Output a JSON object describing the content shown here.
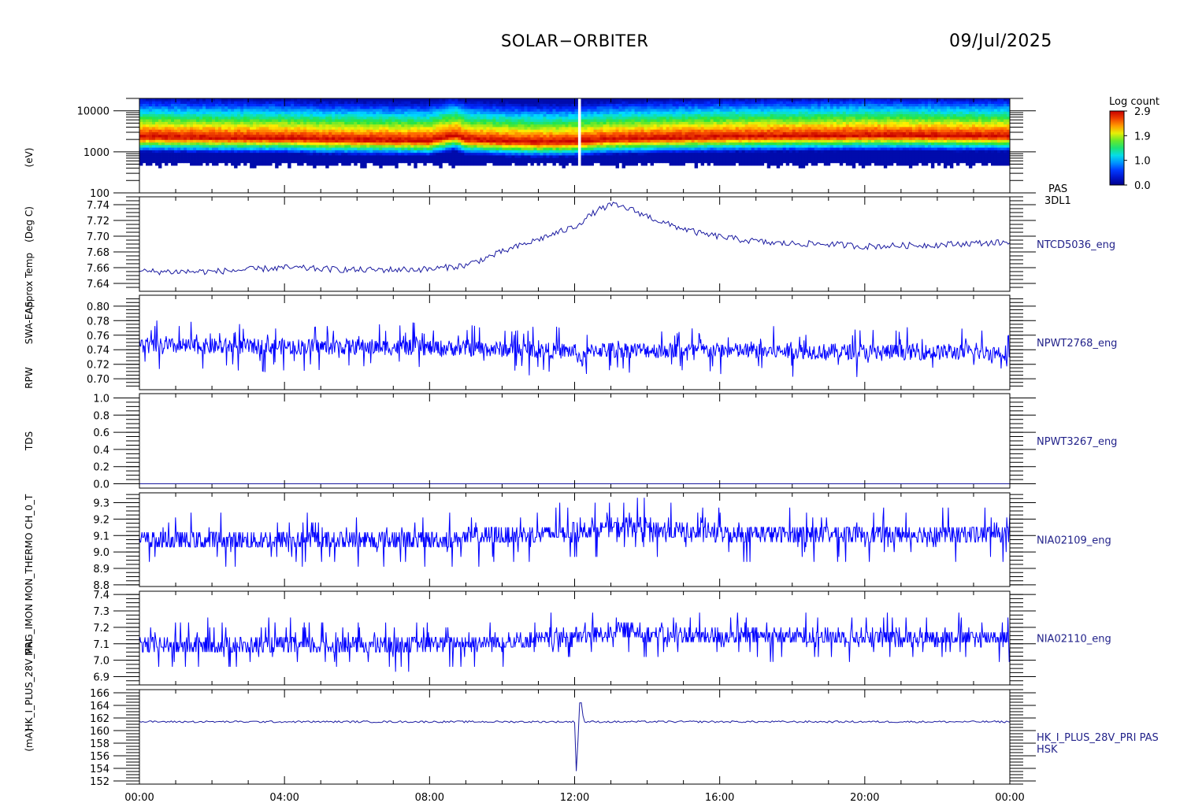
{
  "header": {
    "mission": "SOLAR−ORBITER",
    "date": "09/Jul/2025"
  },
  "colorbar": {
    "title": "Log count",
    "ticks": [
      "2.9",
      "1.9",
      "1.0",
      "0.0"
    ]
  },
  "colors": {
    "trace": "#0000ff",
    "thin_trace": "#1a1aa0",
    "label": "#22228a"
  },
  "y_axis_labels": [
    "(eV)",
    "(Deg C)",
    "Approx Temp",
    "SWA-EAS",
    "RPW",
    "TDS",
    "CH_0_T",
    "MON_THERMO",
    "MAG_IMON",
    "HK_I_PLUS_28V_PRI",
    "(mA)"
  ],
  "chart_data": [
    {
      "type": "heatmap",
      "name": "PAS",
      "name2": "3DL1",
      "ylabel": "(eV)",
      "ylog": true,
      "ylim": [
        100,
        20000
      ],
      "yticks": [
        100,
        1000,
        10000
      ],
      "ytick_labels": [
        "100",
        "1000",
        "10000"
      ],
      "zlim": [
        0.0,
        2.9
      ],
      "x_range": [
        "00:00",
        "24:00"
      ],
      "peak_energy_profile": [
        {
          "t": 0,
          "e": 2300
        },
        {
          "t": 1,
          "e": 2250
        },
        {
          "t": 2,
          "e": 2200
        },
        {
          "t": 3,
          "e": 2150
        },
        {
          "t": 4,
          "e": 2150
        },
        {
          "t": 5,
          "e": 2000
        },
        {
          "t": 6,
          "e": 1950
        },
        {
          "t": 7,
          "e": 1900
        },
        {
          "t": 8,
          "e": 1850
        },
        {
          "t": 8.7,
          "e": 2500
        },
        {
          "t": 9,
          "e": 2000
        },
        {
          "t": 10,
          "e": 1800
        },
        {
          "t": 11,
          "e": 1700
        },
        {
          "t": 12,
          "e": 1750
        },
        {
          "t": 12.5,
          "e": 1900
        },
        {
          "t": 13,
          "e": 2000
        },
        {
          "t": 14,
          "e": 2100
        },
        {
          "t": 15,
          "e": 2200
        },
        {
          "t": 16,
          "e": 2300
        },
        {
          "t": 17,
          "e": 2350
        },
        {
          "t": 18,
          "e": 2400
        },
        {
          "t": 19,
          "e": 2450
        },
        {
          "t": 20,
          "e": 2500
        },
        {
          "t": 21,
          "e": 2500
        },
        {
          "t": 22,
          "e": 2450
        },
        {
          "t": 23,
          "e": 2400
        },
        {
          "t": 24,
          "e": 2400
        }
      ]
    },
    {
      "type": "line",
      "name": "NTCD5036_eng",
      "ylabel": "Approx Temp (Deg C)",
      "ylim": [
        7.63,
        7.75
      ],
      "yticks": [
        7.64,
        7.66,
        7.68,
        7.7,
        7.72,
        7.74
      ],
      "ytick_labels": [
        "7.64",
        "7.66",
        "7.68",
        "7.70",
        "7.72",
        "7.74"
      ],
      "noise": 0.004,
      "profile": [
        {
          "t": 0,
          "v": 7.655
        },
        {
          "t": 2,
          "v": 7.655
        },
        {
          "t": 4,
          "v": 7.66
        },
        {
          "t": 6,
          "v": 7.657
        },
        {
          "t": 8,
          "v": 7.658
        },
        {
          "t": 9,
          "v": 7.663
        },
        {
          "t": 10,
          "v": 7.68
        },
        {
          "t": 11,
          "v": 7.696
        },
        {
          "t": 12,
          "v": 7.712
        },
        {
          "t": 12.6,
          "v": 7.732
        },
        {
          "t": 13,
          "v": 7.74
        },
        {
          "t": 13.5,
          "v": 7.735
        },
        {
          "t": 14.5,
          "v": 7.716
        },
        {
          "t": 15.5,
          "v": 7.703
        },
        {
          "t": 16.5,
          "v": 7.696
        },
        {
          "t": 17.5,
          "v": 7.691
        },
        {
          "t": 19,
          "v": 7.69
        },
        {
          "t": 20,
          "v": 7.687
        },
        {
          "t": 21,
          "v": 7.688
        },
        {
          "t": 22,
          "v": 7.689
        },
        {
          "t": 23,
          "v": 7.691
        },
        {
          "t": 24,
          "v": 7.692
        }
      ]
    },
    {
      "type": "line",
      "name": "NPWT2768_eng",
      "ylabel": "SWA-EAS RPW TDS",
      "ylim": [
        0.685,
        0.815
      ],
      "yticks": [
        0.7,
        0.72,
        0.74,
        0.76,
        0.78,
        0.8
      ],
      "ytick_labels": [
        "0.70",
        "0.72",
        "0.74",
        "0.76",
        "0.78",
        "0.80"
      ],
      "noise": 0.022,
      "dense": true,
      "profile": [
        {
          "t": 0,
          "v": 0.745
        },
        {
          "t": 6,
          "v": 0.744
        },
        {
          "t": 9,
          "v": 0.742
        },
        {
          "t": 12,
          "v": 0.738
        },
        {
          "t": 12.2,
          "v": 0.725
        },
        {
          "t": 12.5,
          "v": 0.74
        },
        {
          "t": 18,
          "v": 0.738
        },
        {
          "t": 24,
          "v": 0.736
        }
      ]
    },
    {
      "type": "line",
      "name": "NPWT3267_eng",
      "ylabel": "CH_0_T",
      "ylim": [
        -0.05,
        1.05
      ],
      "yticks": [
        0.0,
        0.2,
        0.4,
        0.6,
        0.8,
        1.0
      ],
      "ytick_labels": [
        "0.0",
        "0.2",
        "0.4",
        "0.6",
        "0.8",
        "1.0"
      ],
      "noise": 0.0,
      "profile": [
        {
          "t": 0,
          "v": 0.0
        },
        {
          "t": 24,
          "v": 0.0
        }
      ]
    },
    {
      "type": "line",
      "name": "NIA02109_eng",
      "ylabel": "MON_THERMO",
      "ylim": [
        8.79,
        9.36
      ],
      "yticks": [
        8.8,
        8.9,
        9.0,
        9.1,
        9.2,
        9.3
      ],
      "ytick_labels": [
        "8.8",
        "8.9",
        "9.0",
        "9.1",
        "9.2",
        "9.3"
      ],
      "noise": 0.11,
      "dense": true,
      "quantized": 0.03,
      "profile": [
        {
          "t": 0,
          "v": 9.07
        },
        {
          "t": 4,
          "v": 9.07
        },
        {
          "t": 8,
          "v": 9.07
        },
        {
          "t": 10,
          "v": 9.1
        },
        {
          "t": 12,
          "v": 9.12
        },
        {
          "t": 13.5,
          "v": 9.16
        },
        {
          "t": 15,
          "v": 9.12
        },
        {
          "t": 18,
          "v": 9.11
        },
        {
          "t": 24,
          "v": 9.11
        }
      ]
    },
    {
      "type": "line",
      "name": "NIA02110_eng",
      "ylabel": "MAG_IMON",
      "ylim": [
        6.85,
        7.42
      ],
      "yticks": [
        6.9,
        7.0,
        7.1,
        7.2,
        7.3,
        7.4
      ],
      "ytick_labels": [
        "6.9",
        "7.0",
        "7.1",
        "7.2",
        "7.3",
        "7.4"
      ],
      "noise": 0.1,
      "dense": true,
      "quantized": 0.03,
      "profile": [
        {
          "t": 0,
          "v": 7.09
        },
        {
          "t": 6,
          "v": 7.09
        },
        {
          "t": 10,
          "v": 7.11
        },
        {
          "t": 12,
          "v": 7.14
        },
        {
          "t": 13.3,
          "v": 7.18
        },
        {
          "t": 14.5,
          "v": 7.15
        },
        {
          "t": 20,
          "v": 7.14
        },
        {
          "t": 24,
          "v": 7.14
        }
      ]
    },
    {
      "type": "line",
      "name": "HK_I_PLUS_28V_PRI PAS",
      "name2": "HSK",
      "ylabel": "HK_I_PLUS_28V_PRI (mA)",
      "ylim": [
        151.5,
        166.5
      ],
      "yticks": [
        152,
        154,
        156,
        158,
        160,
        162,
        164,
        166
      ],
      "ytick_labels": [
        "152",
        "154",
        "156",
        "158",
        "160",
        "162",
        "164",
        "166"
      ],
      "noise": 0.15,
      "profile": [
        {
          "t": 0,
          "v": 161.4
        },
        {
          "t": 12.0,
          "v": 161.4
        },
        {
          "t": 12.05,
          "v": 153.0
        },
        {
          "t": 12.15,
          "v": 166.0
        },
        {
          "t": 12.25,
          "v": 161.4
        },
        {
          "t": 24,
          "v": 161.4
        }
      ]
    }
  ],
  "x_axis": {
    "ticks": [
      "00:00",
      "04:00",
      "08:00",
      "12:00",
      "16:00",
      "20:00",
      "00:00"
    ]
  }
}
